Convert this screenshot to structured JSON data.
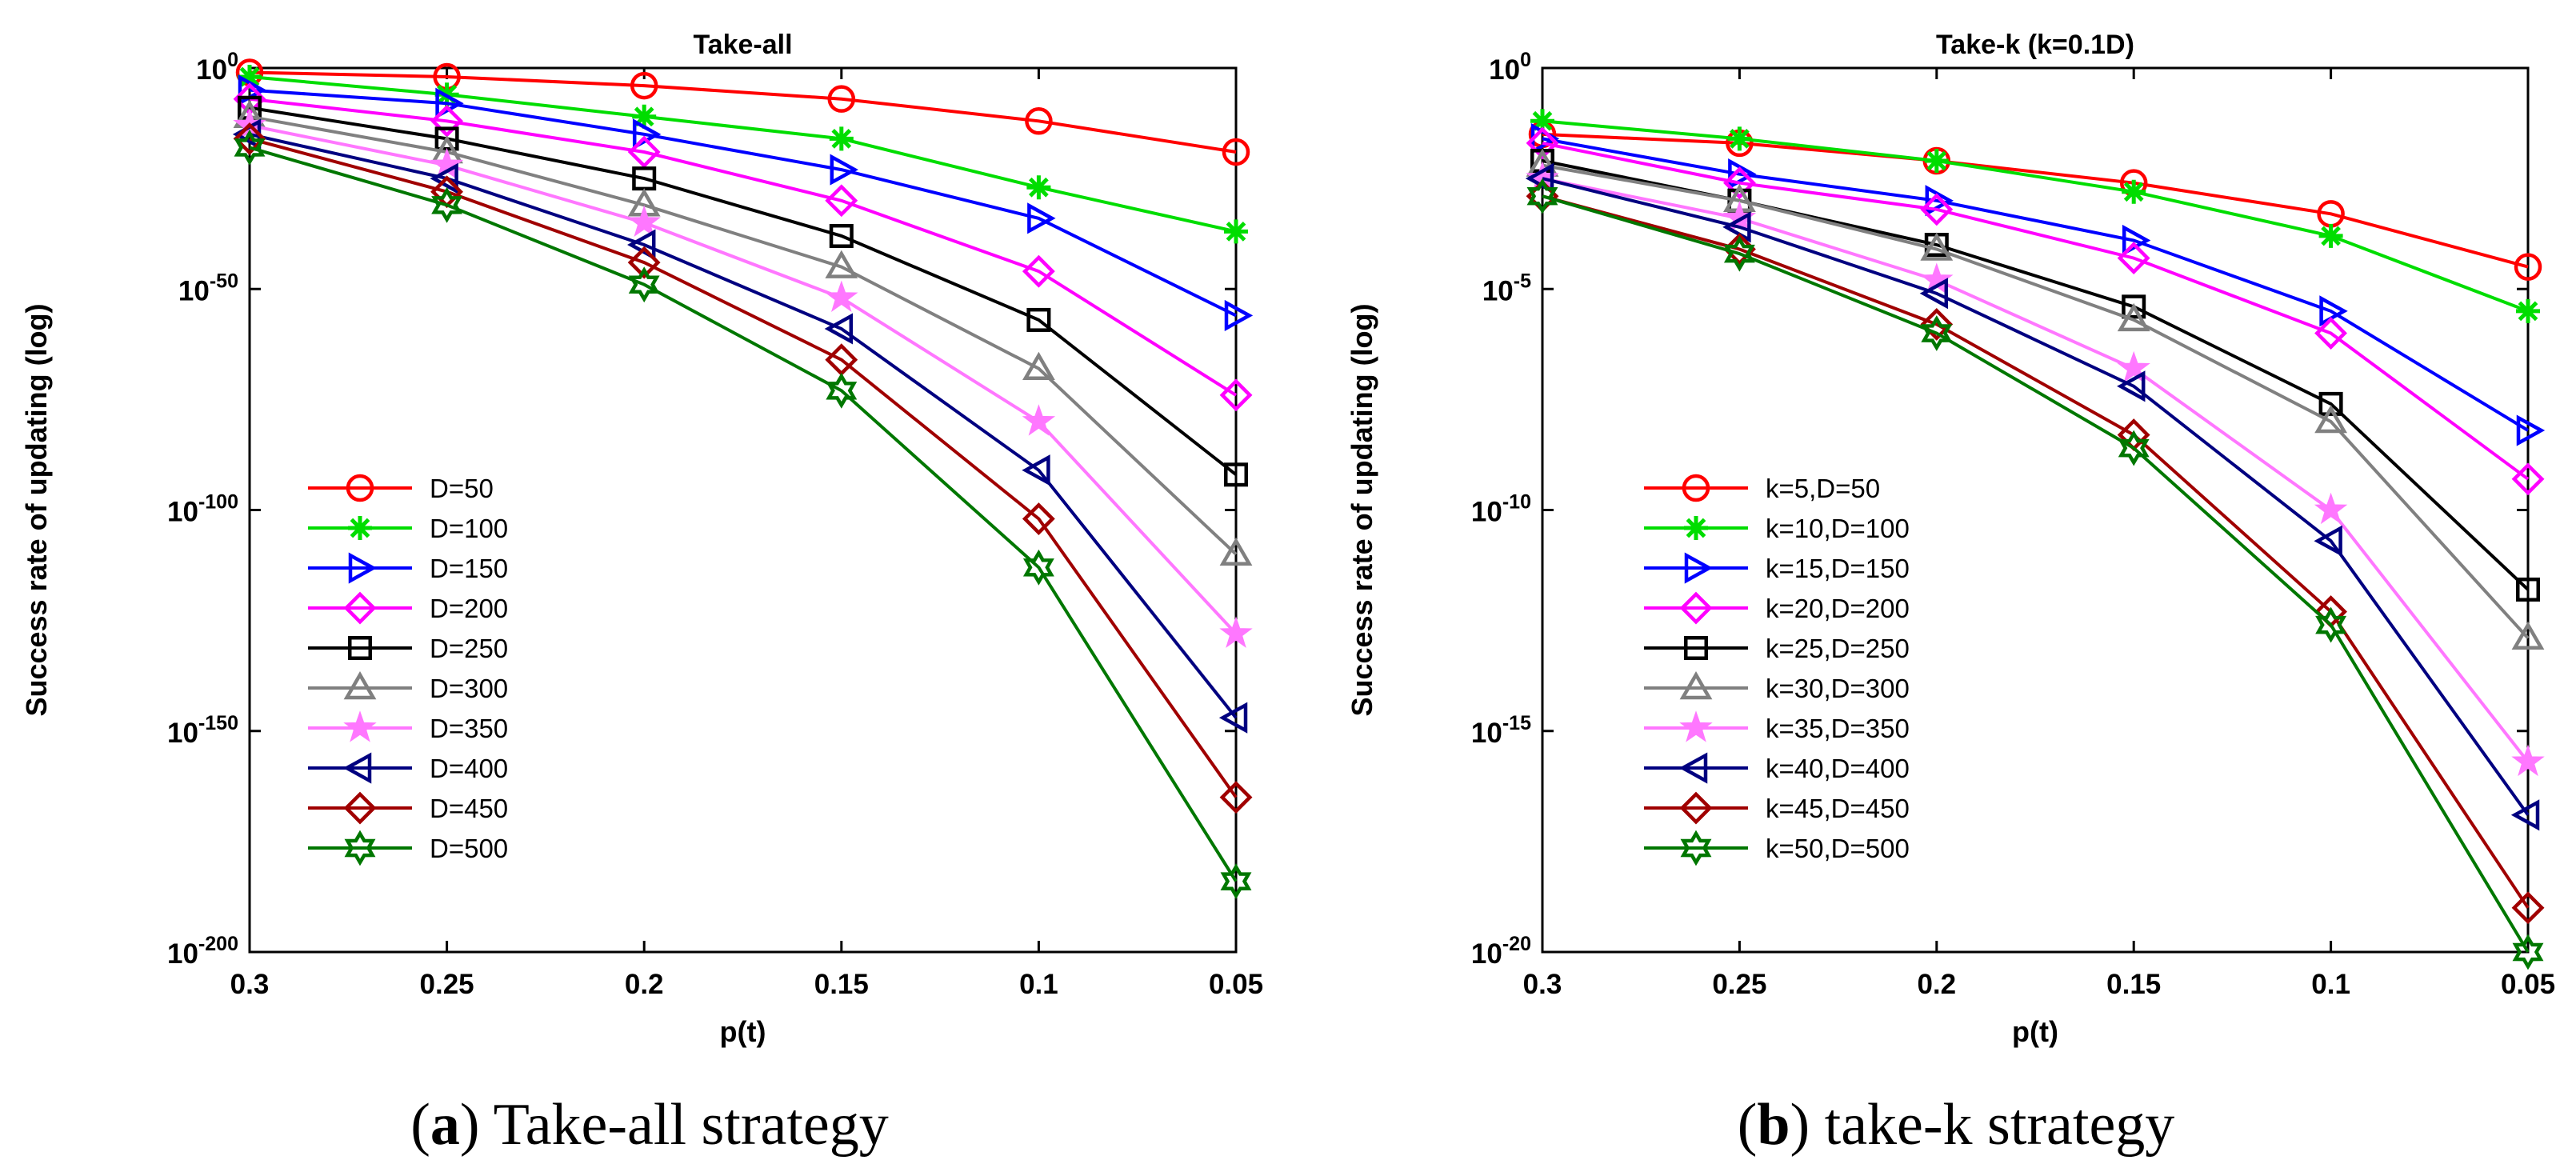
{
  "chart_data": [
    {
      "type": "line",
      "title": "Take-all",
      "xlabel": "p(t)",
      "ylabel": "Success rate of updating (log)",
      "yscale": "log",
      "x": [
        0.3,
        0.25,
        0.2,
        0.15,
        0.1,
        0.05
      ],
      "x_ticks": [
        "0.3",
        "0.25",
        "0.2",
        "0.15",
        "0.1",
        "0.05"
      ],
      "x_reversed": true,
      "ylim_exponent": [
        -200,
        0
      ],
      "y_ticks": [
        {
          "base": "10",
          "exp": "0",
          "value": 0
        },
        {
          "base": "10",
          "exp": "-50",
          "value": -50
        },
        {
          "base": "10",
          "exp": "-100",
          "value": -100
        },
        {
          "base": "10",
          "exp": "-150",
          "value": -150
        },
        {
          "base": "10",
          "exp": "-200",
          "value": -200
        }
      ],
      "legend_position": "lower-left",
      "caption": {
        "letter": "a",
        "prefix": "(",
        "suffix": ") Take-all strategy"
      },
      "series": [
        {
          "name": "D=50",
          "color": "#ff0000",
          "marker": "circle",
          "log10_values": [
            -1,
            -2,
            -4,
            -7,
            -12,
            -19
          ]
        },
        {
          "name": "D=100",
          "color": "#00dd00",
          "marker": "asterisk",
          "log10_values": [
            -2,
            -6,
            -11,
            -16,
            -27,
            -37
          ]
        },
        {
          "name": "D=150",
          "color": "#0000ff",
          "marker": "triangle-right",
          "log10_values": [
            -5,
            -8,
            -15,
            -23,
            -34,
            -56
          ]
        },
        {
          "name": "D=200",
          "color": "#ff00ff",
          "marker": "diamond",
          "log10_values": [
            -7,
            -12,
            -19,
            -30,
            -46,
            -74
          ]
        },
        {
          "name": "D=250",
          "color": "#000000",
          "marker": "square",
          "log10_values": [
            -9,
            -16,
            -25,
            -38,
            -57,
            -92
          ]
        },
        {
          "name": "D=300",
          "color": "#808080",
          "marker": "triangle-up",
          "log10_values": [
            -11,
            -19,
            -31,
            -45,
            -68,
            -110
          ]
        },
        {
          "name": "D=350",
          "color": "#ff77ff",
          "marker": "star",
          "log10_values": [
            -13,
            -22,
            -35,
            -52,
            -80,
            -128
          ]
        },
        {
          "name": "D=400",
          "color": "#000080",
          "marker": "triangle-left",
          "log10_values": [
            -15,
            -25,
            -40,
            -59,
            -91,
            -147
          ]
        },
        {
          "name": "D=450",
          "color": "#a00000",
          "marker": "diamond",
          "log10_values": [
            -16,
            -28,
            -44,
            -66,
            -102,
            -165
          ]
        },
        {
          "name": "D=500",
          "color": "#007700",
          "marker": "hexagram",
          "log10_values": [
            -18,
            -31,
            -49,
            -73,
            -113,
            -184
          ]
        }
      ]
    },
    {
      "type": "line",
      "title": "Take-k (k=0.1D)",
      "xlabel": "p(t)",
      "ylabel": "Success rate of updating (log)",
      "yscale": "log",
      "x": [
        0.3,
        0.25,
        0.2,
        0.15,
        0.1,
        0.05
      ],
      "x_ticks": [
        "0.3",
        "0.25",
        "0.2",
        "0.15",
        "0.1",
        "0.05"
      ],
      "x_reversed": true,
      "ylim_exponent": [
        -20,
        0
      ],
      "y_ticks": [
        {
          "base": "10",
          "exp": "0",
          "value": 0
        },
        {
          "base": "10",
          "exp": "-5",
          "value": -5
        },
        {
          "base": "10",
          "exp": "-10",
          "value": -10
        },
        {
          "base": "10",
          "exp": "-15",
          "value": -15
        },
        {
          "base": "10",
          "exp": "-20",
          "value": -20
        }
      ],
      "legend_position": "lower-left",
      "caption": {
        "letter": "b",
        "prefix": "(",
        "suffix": ") take-k strategy"
      },
      "series": [
        {
          "name": "k=5,D=50",
          "color": "#ff0000",
          "marker": "circle",
          "log10_values": [
            -1.5,
            -1.7,
            -2.1,
            -2.6,
            -3.3,
            -4.5
          ]
        },
        {
          "name": "k=10,D=100",
          "color": "#00dd00",
          "marker": "asterisk",
          "log10_values": [
            -1.2,
            -1.6,
            -2.1,
            -2.8,
            -3.8,
            -5.5
          ]
        },
        {
          "name": "k=15,D=150",
          "color": "#0000ff",
          "marker": "triangle-right",
          "log10_values": [
            -1.6,
            -2.4,
            -3.0,
            -3.9,
            -5.5,
            -8.2
          ]
        },
        {
          "name": "k=20,D=200",
          "color": "#ff00ff",
          "marker": "diamond",
          "log10_values": [
            -1.7,
            -2.6,
            -3.2,
            -4.3,
            -6.0,
            -9.3
          ]
        },
        {
          "name": "k=25,D=250",
          "color": "#000000",
          "marker": "square",
          "log10_values": [
            -2.1,
            -3.0,
            -4.0,
            -5.4,
            -7.6,
            -11.8
          ]
        },
        {
          "name": "k=30,D=300",
          "color": "#808080",
          "marker": "triangle-up",
          "log10_values": [
            -2.2,
            -3.0,
            -4.1,
            -5.7,
            -8.0,
            -12.9
          ]
        },
        {
          "name": "k=35,D=350",
          "color": "#ff77ff",
          "marker": "star",
          "log10_values": [
            -2.5,
            -3.4,
            -4.8,
            -6.8,
            -10.0,
            -15.7
          ]
        },
        {
          "name": "k=40,D=400",
          "color": "#000080",
          "marker": "triangle-left",
          "log10_values": [
            -2.5,
            -3.6,
            -5.1,
            -7.2,
            -10.7,
            -16.9
          ]
        },
        {
          "name": "k=45,D=450",
          "color": "#a00000",
          "marker": "diamond",
          "log10_values": [
            -2.9,
            -4.1,
            -5.8,
            -8.3,
            -12.3,
            -19.0
          ]
        },
        {
          "name": "k=50,D=500",
          "color": "#007700",
          "marker": "hexagram",
          "log10_values": [
            -2.9,
            -4.2,
            -6.0,
            -8.6,
            -12.6,
            -20.0
          ]
        }
      ]
    }
  ]
}
